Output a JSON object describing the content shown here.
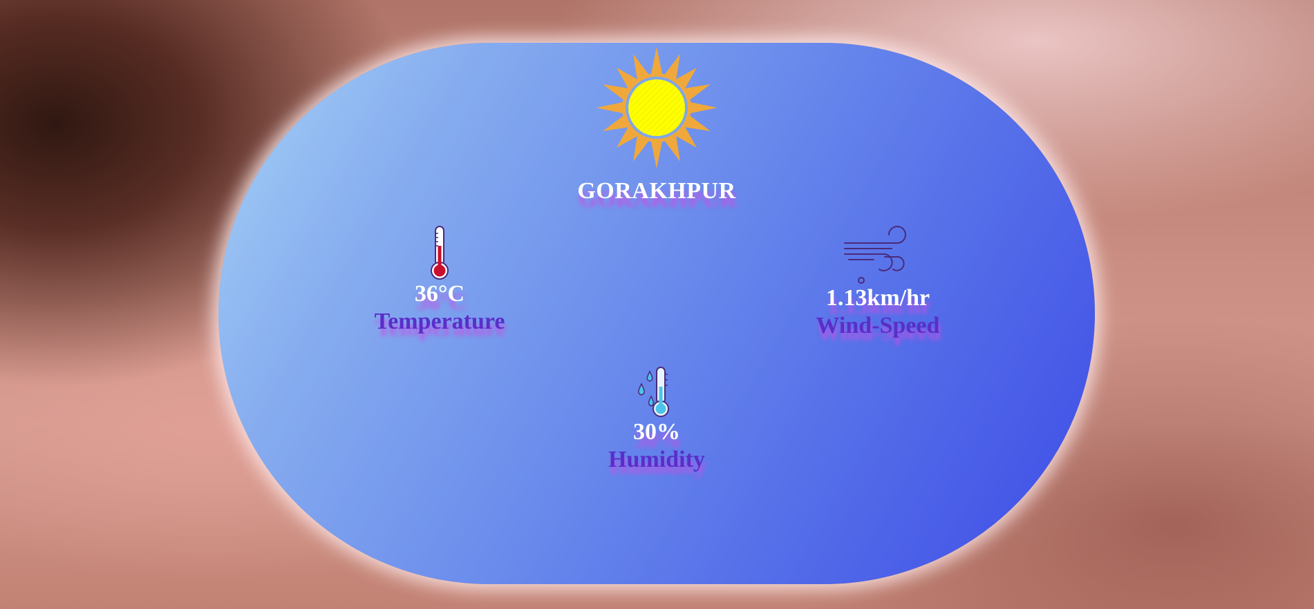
{
  "app": {
    "city": "GORAKHPUR",
    "weather_icon": "sun-icon"
  },
  "stats": {
    "temperature": {
      "value": "36°C",
      "label": "Temperature",
      "icon": "thermometer-icon"
    },
    "wind": {
      "value": "1.13km/hr",
      "label": "Wind-Speed",
      "icon": "wind-icon"
    },
    "humidity": {
      "value": "30%",
      "label": "Humidity",
      "icon": "humidity-icon"
    }
  },
  "colors": {
    "card_gradient_start": "#a6d2f6",
    "card_gradient_end": "#3d4be6",
    "label_color": "#5a2ec9",
    "sun_core": "#ffff00",
    "sun_rays": "#f0a83c"
  }
}
